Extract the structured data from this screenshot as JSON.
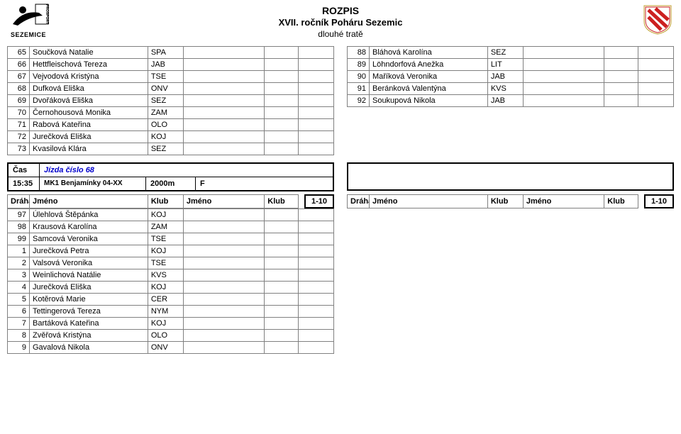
{
  "header": {
    "title1": "ROZPIS",
    "title2": "XVII. ročník Poháru Sezemic",
    "title3": "dlouhé tratě",
    "logo_left_caption": "SEZEMICE"
  },
  "left_rows": [
    {
      "n": "65",
      "name": "Součková Natalie",
      "klub": "SPA"
    },
    {
      "n": "66",
      "name": "Hettfleischová Tereza",
      "klub": "JAB"
    },
    {
      "n": "67",
      "name": "Vejvodová Kristýna",
      "klub": "TSE"
    },
    {
      "n": "68",
      "name": "Dufková Eliška",
      "klub": "ONV"
    },
    {
      "n": "69",
      "name": "Dvořáková Eliška",
      "klub": "SEZ"
    },
    {
      "n": "70",
      "name": "Černohousová Monika",
      "klub": "ZAM"
    },
    {
      "n": "71",
      "name": "Rabová Kateřina",
      "klub": "OLO"
    },
    {
      "n": "72",
      "name": "Jurečková Eliška",
      "klub": "KOJ"
    },
    {
      "n": "73",
      "name": "Kvasilová Klára",
      "klub": "SEZ"
    }
  ],
  "right_rows": [
    {
      "n": "88",
      "name": "Bláhová Karolína",
      "klub": "SEZ"
    },
    {
      "n": "89",
      "name": "Löhndorfová Anežka",
      "klub": "LIT"
    },
    {
      "n": "90",
      "name": "Maříková Veronika",
      "klub": "JAB"
    },
    {
      "n": "91",
      "name": "Beránková Valentýna",
      "klub": "KVS"
    },
    {
      "n": "92",
      "name": "Soukupová Nikola",
      "klub": "JAB"
    }
  ],
  "section": {
    "cas_label": "Čas",
    "jizda_label": "Jízda číslo 68",
    "time": "15:35",
    "cat": "MK1 Benjamínky 04-XX",
    "dist": "2000m",
    "flag": "F"
  },
  "table_hdr": {
    "draha": "Dráha",
    "jmeno": "Jméno",
    "klub": "Klub",
    "score": "1-10"
  },
  "bottom_rows": [
    {
      "n": "97",
      "name": "Úlehlová Štěpánka",
      "klub": "KOJ"
    },
    {
      "n": "98",
      "name": "Krausová Karolína",
      "klub": "ZAM"
    },
    {
      "n": "99",
      "name": "Samcová Veronika",
      "klub": "TSE"
    },
    {
      "n": "1",
      "name": "Jurečková Petra",
      "klub": "KOJ"
    },
    {
      "n": "2",
      "name": "Valsová Veronika",
      "klub": "TSE"
    },
    {
      "n": "3",
      "name": "Weinlichová Natálie",
      "klub": "KVS"
    },
    {
      "n": "4",
      "name": "Jurečková Eliška",
      "klub": "KOJ"
    },
    {
      "n": "5",
      "name": "Kotěrová Marie",
      "klub": "CER"
    },
    {
      "n": "6",
      "name": "Tettingerová Tereza",
      "klub": "NYM"
    },
    {
      "n": "7",
      "name": "Bartáková Kateřina",
      "klub": "KOJ"
    },
    {
      "n": "8",
      "name": "Zvěřová Kristýna",
      "klub": "OLO"
    },
    {
      "n": "9",
      "name": "Gavalová Nikola",
      "klub": "ONV"
    }
  ],
  "colors": {
    "border": "#808080",
    "frame": "#000000",
    "link": "#0000cc"
  }
}
